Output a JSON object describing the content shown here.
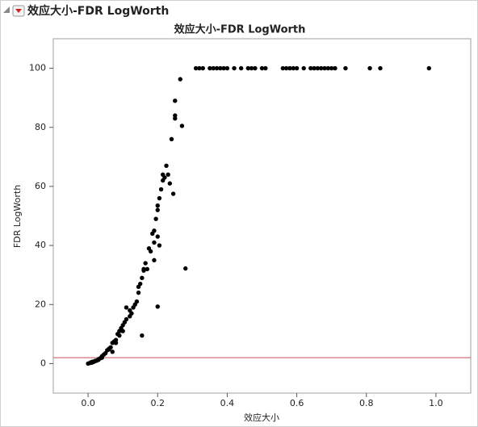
{
  "header": {
    "title": "效应大小-FDR LogWorth"
  },
  "chart_data": {
    "type": "scatter",
    "title": "效应大小-FDR LogWorth",
    "x_label": "效应大小",
    "y_label": "FDR LogWorth",
    "color": "#000000",
    "xlim": [
      -0.1,
      1.1
    ],
    "ylim": [
      -10,
      110
    ],
    "xticks": [
      {
        "value": 0,
        "label": "0.0"
      },
      {
        "value": 0.2,
        "label": "0.2"
      },
      {
        "value": 0.4,
        "label": "0.4"
      },
      {
        "value": 0.6,
        "label": "0.6"
      },
      {
        "value": 0.8,
        "label": "0.8"
      },
      {
        "value": 1,
        "label": "1.0"
      }
    ],
    "yticks": [
      0,
      20,
      40,
      60,
      80,
      100
    ],
    "ref_line": {
      "value": 2,
      "color": "#c0505a"
    },
    "x": [
      0,
      0.005,
      0.008,
      0.01,
      0.012,
      0.015,
      0.02,
      0.02,
      0.025,
      0.03,
      0.03,
      0.035,
      0.04,
      0.04,
      0.045,
      0.05,
      0.055,
      0.06,
      0.06,
      0.065,
      0.07,
      0.07,
      0.075,
      0.08,
      0.08,
      0.085,
      0.09,
      0.09,
      0.095,
      0.1,
      0.1,
      0.105,
      0.11,
      0.11,
      0.12,
      0.12,
      0.125,
      0.13,
      0.135,
      0.14,
      0.145,
      0.145,
      0.15,
      0.155,
      0.155,
      0.16,
      0.16,
      0.165,
      0.17,
      0.175,
      0.18,
      0.185,
      0.19,
      0.19,
      0.19,
      0.195,
      0.2,
      0.2,
      0.2,
      0.2,
      0.205,
      0.205,
      0.21,
      0.215,
      0.215,
      0.22,
      0.225,
      0.23,
      0.235,
      0.24,
      0.245,
      0.25,
      0.25,
      0.25,
      0.265,
      0.27,
      0.28,
      0.31,
      0.32,
      0.33,
      0.35,
      0.36,
      0.37,
      0.38,
      0.39,
      0.4,
      0.42,
      0.44,
      0.46,
      0.47,
      0.48,
      0.5,
      0.51,
      0.56,
      0.57,
      0.58,
      0.59,
      0.6,
      0.62,
      0.64,
      0.65,
      0.66,
      0.67,
      0.68,
      0.69,
      0.7,
      0.71,
      0.74,
      0.81,
      0.84,
      0.98
    ],
    "values": [
      0,
      0.2,
      0.4,
      0.3,
      0.6,
      0.5,
      0.8,
      0.9,
      1,
      1.3,
      1.5,
      1.8,
      2,
      2.5,
      3,
      3.5,
      4.5,
      5,
      4.8,
      5.5,
      7,
      4,
      7.5,
      8,
      7,
      10,
      11,
      9.5,
      12,
      13,
      11,
      14,
      19,
      15,
      16,
      18,
      17,
      19,
      20,
      21,
      24,
      26,
      27,
      29,
      9.5,
      32,
      31.5,
      34,
      32,
      39,
      38,
      44,
      45,
      41,
      35,
      49,
      52,
      53.5,
      43,
      19.3,
      56,
      40,
      59,
      64,
      62,
      63,
      67,
      64,
      61,
      76,
      57.5,
      89,
      84,
      83,
      96.3,
      80.5,
      32.2,
      100,
      100,
      100,
      100,
      100,
      100,
      100,
      100,
      100,
      100,
      100,
      100,
      100,
      100,
      100,
      100,
      100,
      100,
      100,
      100,
      100,
      100,
      100,
      100,
      100,
      100,
      100,
      100,
      100,
      100,
      100,
      100,
      100,
      100
    ]
  }
}
